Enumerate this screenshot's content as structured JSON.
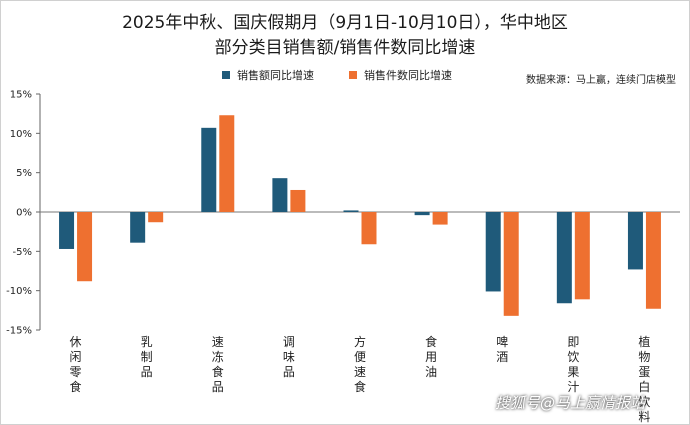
{
  "chart_data": {
    "type": "bar",
    "title_line1": "2025年中秋、国庆假期月（9月1日-10月10日），华中地区",
    "title_line2": "部分类目销售额/销售件数同比增速",
    "source": "数据来源：马上赢，连续门店模型",
    "categories": [
      "休闲零食",
      "乳制品",
      "速冻食品",
      "调味品",
      "方便速食",
      "食用油",
      "啤酒",
      "即饮果汁",
      "植物蛋白饮料"
    ],
    "series": [
      {
        "name": "销售额同比增速",
        "color": "#1f5a7a",
        "values": [
          -4.7,
          -3.9,
          10.7,
          4.3,
          0.2,
          -0.4,
          -10.1,
          -11.6,
          -7.3
        ]
      },
      {
        "name": "销售件数同比增速",
        "color": "#ee7030",
        "values": [
          -8.8,
          -1.3,
          12.3,
          2.8,
          -4.1,
          -1.6,
          -13.2,
          -11.1,
          -12.3
        ]
      }
    ],
    "yticks": [
      15,
      10,
      5,
      0,
      -5,
      -10,
      -15
    ],
    "ytick_labels": [
      "15%",
      "10%",
      "5%",
      "0%",
      "-5%",
      "-10%",
      "-15%"
    ],
    "ylim": [
      -15,
      15
    ],
    "grid": false,
    "legend_position": "top"
  },
  "watermark": "搜狐号@马上赢情报站"
}
